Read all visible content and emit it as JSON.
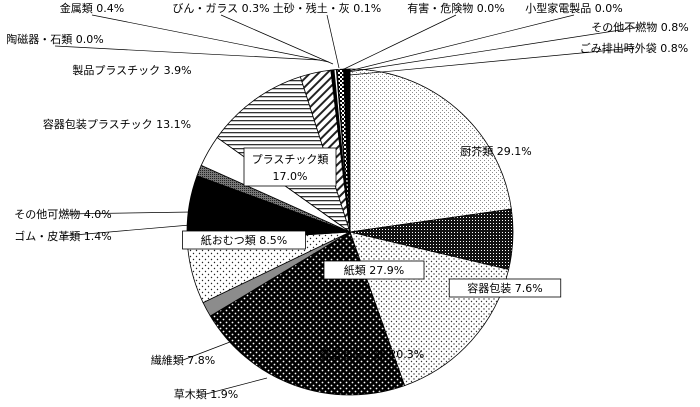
{
  "chart_data": {
    "type": "pie",
    "start_angle_deg": 0,
    "direction": "clockwise",
    "slices": [
      {
        "label": "厨芥類",
        "value": 29.1,
        "display": "厨芥類 29.1%",
        "pattern": "dots-light"
      },
      {
        "label": "容器包装",
        "value": 7.6,
        "display": "容器包装 7.6%",
        "pattern": "dark-dots"
      },
      {
        "label": "容器包装以外",
        "value": 20.3,
        "display": "容器包装以外 20.3%",
        "pattern": "dots-small"
      },
      {
        "label": "紙類",
        "value": 27.9,
        "display": "紙類 27.9%",
        "pattern": "black-dots"
      },
      {
        "label": "草木類",
        "value": 1.9,
        "display": "草木類 1.9%",
        "pattern": "gray"
      },
      {
        "label": "繊維類",
        "value": 7.8,
        "display": "繊維類 7.8%",
        "pattern": "dots-sparse"
      },
      {
        "label": "紙おむつ類",
        "value": 8.5,
        "display": "紙おむつ類 8.5%",
        "pattern": "solid-black"
      },
      {
        "label": "ゴム・皮革類",
        "value": 1.4,
        "display": "ゴム・皮革類 1.4%",
        "pattern": "dense-dots"
      },
      {
        "label": "その他可燃物",
        "value": 4.0,
        "display": "その他可燃物 4.0%",
        "pattern": "white"
      },
      {
        "label": "容器包装プラスチック",
        "value": 13.1,
        "display": "容器包装プラスチック 13.1%",
        "pattern": "hlines"
      },
      {
        "label": "製品プラスチック",
        "value": 3.9,
        "display": "製品プラスチック 3.9%",
        "pattern": "diag-lines"
      },
      {
        "label": "陶磁器・石類",
        "value": 0.0,
        "display": "陶磁器・石類 0.0%",
        "pattern": "white"
      },
      {
        "label": "金属類",
        "value": 0.4,
        "display": "金属類 0.4%",
        "pattern": "solid-black"
      },
      {
        "label": "びん・ガラス",
        "value": 0.3,
        "display": "びん・ガラス 0.3%",
        "pattern": "white"
      },
      {
        "label": "土砂・残土・灰",
        "value": 0.1,
        "display": "土砂・残土・灰 0.1%",
        "pattern": "solid-black"
      },
      {
        "label": "有害・危険物",
        "value": 0.0,
        "display": "有害・危険物 0.0%",
        "pattern": "white"
      },
      {
        "label": "小型家電製品",
        "value": 0.0,
        "display": "小型家電製品 0.0%",
        "pattern": "white"
      },
      {
        "label": "その他不燃物",
        "value": 0.8,
        "display": "その他不燃物 0.8%",
        "pattern": "checker"
      },
      {
        "label": "ごみ排出時外袋",
        "value": 0.8,
        "display": "ごみ排出時外袋 0.8%",
        "pattern": "solid-black"
      }
    ],
    "group": {
      "label": "プラスチック類",
      "value": 17.0,
      "display_name": "プラスチック類",
      "display_value": "17.0%"
    }
  }
}
